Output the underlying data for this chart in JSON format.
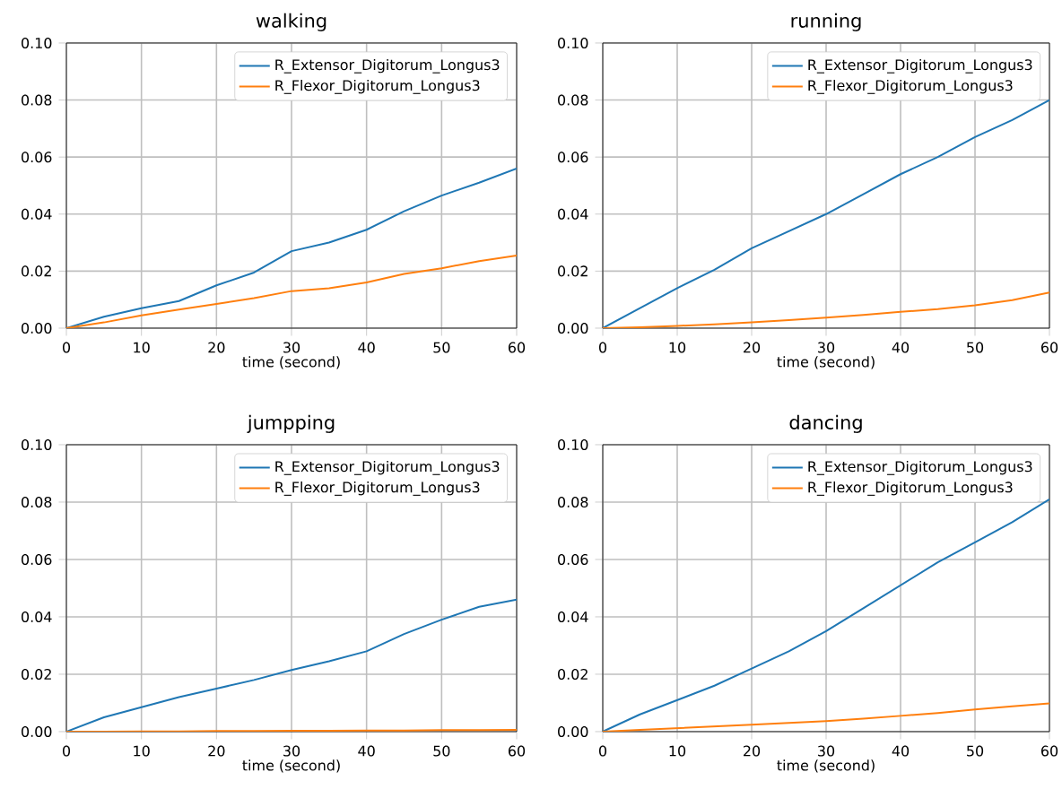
{
  "chart_data": [
    {
      "type": "line",
      "title": "walking",
      "xlabel": "time (second)",
      "x": [
        0,
        5,
        10,
        15,
        20,
        25,
        30,
        35,
        40,
        45,
        50,
        55,
        60
      ],
      "xlim": [
        0,
        60
      ],
      "ylim": [
        0,
        0.1
      ],
      "xticks": [
        0,
        10,
        20,
        30,
        40,
        50,
        60
      ],
      "yticks": [
        {
          "value": 0,
          "label": "0.00"
        },
        {
          "value": 0.02,
          "label": "0.02"
        },
        {
          "value": 0.04,
          "label": "0.04"
        },
        {
          "value": 0.06,
          "label": "0.06"
        },
        {
          "value": 0.08,
          "label": "0.08"
        },
        {
          "value": 0.1,
          "label": "0.10"
        }
      ],
      "grid": true,
      "legend": "top right",
      "series": [
        {
          "name": "R_Extensor_Digitorum_Longus3",
          "color": "#1f77b4",
          "values": [
            0,
            0.004,
            0.007,
            0.0095,
            0.015,
            0.0195,
            0.027,
            0.03,
            0.0345,
            0.041,
            0.0465,
            0.051,
            0.056
          ]
        },
        {
          "name": "R_Flexor_Digitorum_Longus3",
          "color": "#ff7f0e",
          "values": [
            0,
            0.002,
            0.0045,
            0.0065,
            0.0085,
            0.0105,
            0.013,
            0.014,
            0.016,
            0.019,
            0.021,
            0.0235,
            0.0255
          ]
        }
      ]
    },
    {
      "type": "line",
      "title": "running",
      "xlabel": "time (second)",
      "x": [
        0,
        5,
        10,
        15,
        20,
        25,
        30,
        35,
        40,
        45,
        50,
        55,
        60
      ],
      "xlim": [
        0,
        60
      ],
      "ylim": [
        0,
        0.1
      ],
      "xticks": [
        0,
        10,
        20,
        30,
        40,
        50,
        60
      ],
      "yticks": [
        {
          "value": 0,
          "label": "0.00"
        },
        {
          "value": 0.02,
          "label": "0.02"
        },
        {
          "value": 0.04,
          "label": "0.04"
        },
        {
          "value": 0.06,
          "label": "0.06"
        },
        {
          "value": 0.08,
          "label": "0.08"
        },
        {
          "value": 0.1,
          "label": "0.10"
        }
      ],
      "grid": true,
      "legend": "top right",
      "series": [
        {
          "name": "R_Extensor_Digitorum_Longus3",
          "color": "#1f77b4",
          "values": [
            0,
            0.007,
            0.014,
            0.0205,
            0.028,
            0.034,
            0.04,
            0.047,
            0.054,
            0.06,
            0.067,
            0.073,
            0.08
          ]
        },
        {
          "name": "R_Flexor_Digitorum_Longus3",
          "color": "#ff7f0e",
          "values": [
            0,
            0.0003,
            0.0008,
            0.0013,
            0.002,
            0.0028,
            0.0037,
            0.0046,
            0.0057,
            0.0067,
            0.008,
            0.0098,
            0.0125
          ]
        }
      ]
    },
    {
      "type": "line",
      "title": "jumpping",
      "xlabel": "time (second)",
      "x": [
        0,
        5,
        10,
        15,
        20,
        25,
        30,
        35,
        40,
        45,
        50,
        55,
        60
      ],
      "xlim": [
        0,
        60
      ],
      "ylim": [
        0,
        0.1
      ],
      "xticks": [
        0,
        10,
        20,
        30,
        40,
        50,
        60
      ],
      "yticks": [
        {
          "value": 0,
          "label": "0.00"
        },
        {
          "value": 0.02,
          "label": "0.02"
        },
        {
          "value": 0.04,
          "label": "0.04"
        },
        {
          "value": 0.06,
          "label": "0.06"
        },
        {
          "value": 0.08,
          "label": "0.08"
        },
        {
          "value": 0.1,
          "label": "0.10"
        }
      ],
      "grid": true,
      "legend": "top right",
      "series": [
        {
          "name": "R_Extensor_Digitorum_Longus3",
          "color": "#1f77b4",
          "values": [
            0,
            0.005,
            0.0085,
            0.012,
            0.015,
            0.018,
            0.0215,
            0.0245,
            0.028,
            0.034,
            0.039,
            0.0435,
            0.046
          ]
        },
        {
          "name": "R_Flexor_Digitorum_Longus3",
          "color": "#ff7f0e",
          "values": [
            0,
            0,
            0.0001,
            0.0001,
            0.0002,
            0.0002,
            0.0003,
            0.0003,
            0.0004,
            0.0004,
            0.0005,
            0.0005,
            0.0006
          ]
        }
      ]
    },
    {
      "type": "line",
      "title": "dancing",
      "xlabel": "time (second)",
      "x": [
        0,
        5,
        10,
        15,
        20,
        25,
        30,
        35,
        40,
        45,
        50,
        55,
        60
      ],
      "xlim": [
        0,
        60
      ],
      "ylim": [
        0,
        0.1
      ],
      "xticks": [
        0,
        10,
        20,
        30,
        40,
        50,
        60
      ],
      "yticks": [
        {
          "value": 0,
          "label": "0.00"
        },
        {
          "value": 0.02,
          "label": "0.02"
        },
        {
          "value": 0.04,
          "label": "0.04"
        },
        {
          "value": 0.06,
          "label": "0.06"
        },
        {
          "value": 0.08,
          "label": "0.08"
        },
        {
          "value": 0.1,
          "label": "0.10"
        }
      ],
      "grid": true,
      "legend": "top right",
      "series": [
        {
          "name": "R_Extensor_Digitorum_Longus3",
          "color": "#1f77b4",
          "values": [
            0,
            0.006,
            0.011,
            0.016,
            0.022,
            0.028,
            0.035,
            0.043,
            0.051,
            0.059,
            0.066,
            0.073,
            0.081
          ]
        },
        {
          "name": "R_Flexor_Digitorum_Longus3",
          "color": "#ff7f0e",
          "values": [
            0,
            0.0006,
            0.0012,
            0.0018,
            0.0024,
            0.003,
            0.0037,
            0.0045,
            0.0055,
            0.0065,
            0.0077,
            0.0088,
            0.0098
          ]
        }
      ]
    }
  ]
}
